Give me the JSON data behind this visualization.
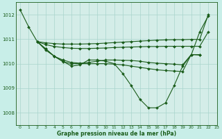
{
  "background_color": "#c8eee8",
  "plot_bg_color": "#d4ede8",
  "grid_color": "#a8d4cc",
  "line_color": "#1a5c1a",
  "xlabel": "Graphe pression niveau de la mer (hPa)",
  "ylim": [
    1007.5,
    1012.5
  ],
  "xlim": [
    -0.5,
    23
  ],
  "yticks": [
    1008,
    1009,
    1010,
    1011,
    1012
  ],
  "xticks": [
    0,
    1,
    2,
    3,
    4,
    5,
    6,
    7,
    8,
    9,
    10,
    11,
    12,
    13,
    14,
    15,
    16,
    17,
    18,
    19,
    20,
    21,
    22,
    23
  ],
  "line1_x": [
    0,
    1,
    2,
    3,
    4,
    5,
    6,
    7,
    8,
    9,
    10,
    11,
    12,
    13,
    14,
    15,
    16,
    17,
    18,
    19,
    20,
    21,
    22
  ],
  "line1_y": [
    1012.2,
    1011.5,
    1010.9,
    1010.6,
    1010.3,
    1010.1,
    1009.9,
    1009.95,
    1010.15,
    1010.15,
    1010.1,
    1010.0,
    1009.6,
    1009.1,
    1008.55,
    1008.2,
    1008.2,
    1008.4,
    1009.1,
    1009.9,
    1010.35,
    1011.3,
    1011.95
  ],
  "line2_x": [
    2,
    3,
    4,
    5,
    6,
    7,
    8,
    9,
    10,
    11,
    12,
    13,
    14,
    15,
    16,
    17,
    18,
    19,
    20,
    21,
    22
  ],
  "line2_y": [
    1010.9,
    1010.85,
    1010.82,
    1010.8,
    1010.8,
    1010.8,
    1010.81,
    1010.82,
    1010.84,
    1010.86,
    1010.88,
    1010.9,
    1010.92,
    1010.94,
    1010.96,
    1010.97,
    1010.98,
    1010.98,
    1010.99,
    1010.99,
    1012.0
  ],
  "line3_x": [
    2,
    3,
    4,
    5,
    6,
    7,
    8,
    9,
    10,
    11,
    12,
    13,
    14,
    15,
    16,
    17,
    18,
    19,
    20,
    21,
    22
  ],
  "line3_y": [
    1010.9,
    1010.78,
    1010.7,
    1010.66,
    1010.63,
    1010.62,
    1010.62,
    1010.63,
    1010.64,
    1010.66,
    1010.67,
    1010.68,
    1010.69,
    1010.7,
    1010.7,
    1010.71,
    1010.71,
    1010.71,
    1010.71,
    1010.71,
    1011.3
  ],
  "line4_x": [
    2,
    3,
    4,
    5,
    6,
    7,
    8,
    9,
    10,
    11,
    12,
    13,
    14,
    15,
    16,
    17,
    18,
    19,
    20,
    21
  ],
  "line4_y": [
    1010.9,
    1010.6,
    1010.3,
    1010.15,
    1010.05,
    1010.02,
    1010.05,
    1010.1,
    1010.15,
    1010.15,
    1010.14,
    1010.13,
    1010.1,
    1010.05,
    1010.02,
    1010.0,
    1009.98,
    1009.95,
    1010.37,
    1010.37
  ],
  "line5_x": [
    2,
    3,
    4,
    5,
    6,
    7,
    8,
    9,
    10,
    11,
    12,
    13,
    14,
    15,
    16,
    17,
    18,
    19,
    20,
    21
  ],
  "line5_y": [
    1010.9,
    1010.55,
    1010.3,
    1010.08,
    1010.0,
    1010.0,
    1010.0,
    1010.0,
    1010.0,
    1009.98,
    1009.95,
    1009.9,
    1009.85,
    1009.8,
    1009.75,
    1009.72,
    1009.7,
    1009.68,
    1010.37,
    1010.35
  ]
}
